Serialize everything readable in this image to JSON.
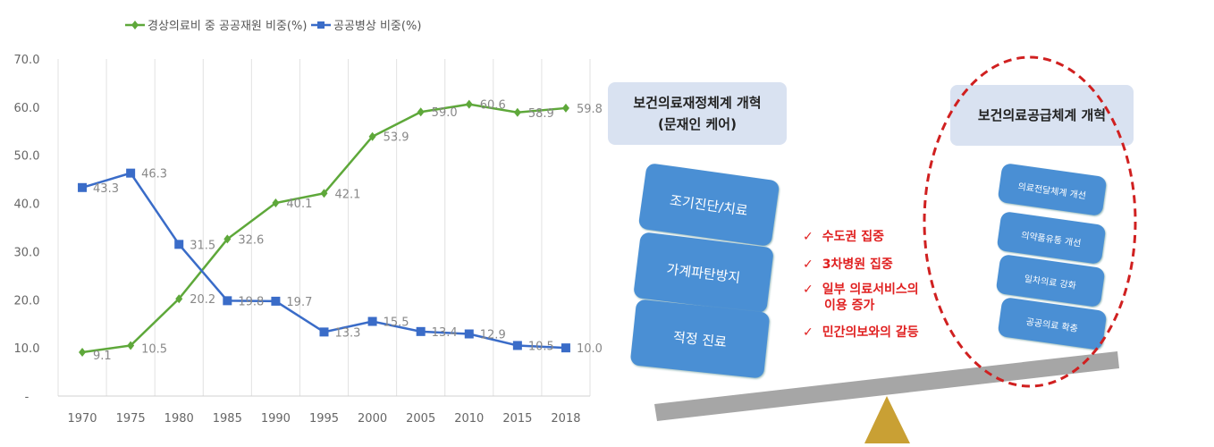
{
  "chart_data": {
    "type": "line",
    "categories": [
      "1970",
      "1975",
      "1980",
      "1985",
      "1990",
      "1995",
      "2000",
      "2005",
      "2010",
      "2015",
      "2018"
    ],
    "series": [
      {
        "name": "경상의료비 중 공공재원 비중(%)",
        "color": "#5ea83a",
        "marker": "diamond",
        "values": [
          9.1,
          10.5,
          20.2,
          32.6,
          40.1,
          42.1,
          53.9,
          59.0,
          60.6,
          58.9,
          59.8
        ],
        "labels": [
          "9.1",
          "10.5",
          "20.2",
          "32.6",
          "40.1",
          "42.1",
          "53.9",
          "59.0",
          "60.6",
          "58.9",
          "59.8"
        ]
      },
      {
        "name": "공공병상 비중(%)",
        "color": "#3a6cc8",
        "marker": "square",
        "values": [
          43.3,
          46.3,
          31.5,
          19.8,
          19.7,
          13.3,
          15.5,
          13.4,
          12.9,
          10.5,
          10.0
        ],
        "labels": [
          "43.3",
          "46.3",
          "31.5",
          "19.8",
          "19.7",
          "13.3",
          "15.5",
          "13.4",
          "12.9",
          "10.5",
          "10.0"
        ]
      }
    ],
    "yticks": [
      "-",
      "10.0",
      "20.0",
      "30.0",
      "40.0",
      "50.0",
      "60.0",
      "70.0"
    ],
    "ylim": [
      0,
      70
    ],
    "grid": "vertical",
    "legend": "top"
  },
  "diagram": {
    "left_header": [
      "보건의료재정체계 개혁",
      "(문재인 케어)"
    ],
    "right_header": "보건의료공급체계 개혁",
    "left_blocks": [
      "조기진단/치료",
      "가계파탄방지",
      "적정 진료"
    ],
    "right_blocks": [
      "의료전달체계 개선",
      "의약품유통 개선",
      "일차의료 강화",
      "공공의료 확충"
    ],
    "issues": [
      "수도권 집중",
      "3차병원 집중",
      "일부 의료서비스의",
      "이용 증가",
      "민간의보와의 갈등"
    ],
    "check": "✓"
  }
}
